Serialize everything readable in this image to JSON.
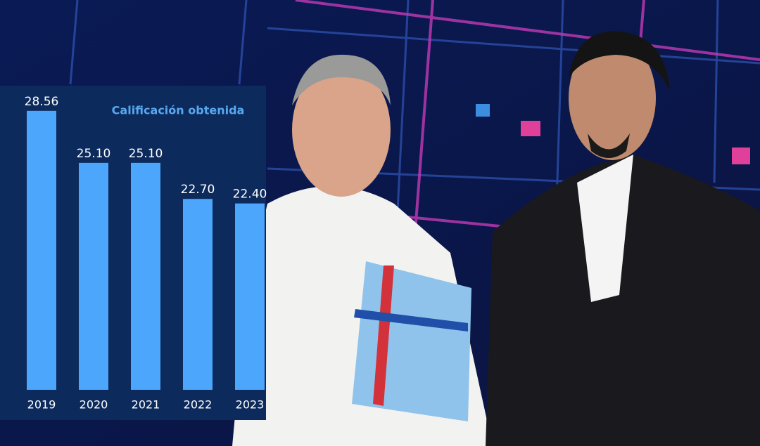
{
  "chart_data": {
    "type": "bar",
    "title": "Calificación obtenida",
    "categories": [
      "2019",
      "2020",
      "2021",
      "2022",
      "2023"
    ],
    "values": [
      28.56,
      25.1,
      25.1,
      22.7,
      22.4
    ],
    "value_labels": [
      "28.56",
      "25.10",
      "25.10",
      "22.70",
      "22.40"
    ],
    "color": "#4ca6fb",
    "ylim": [
      10,
      30
    ]
  }
}
